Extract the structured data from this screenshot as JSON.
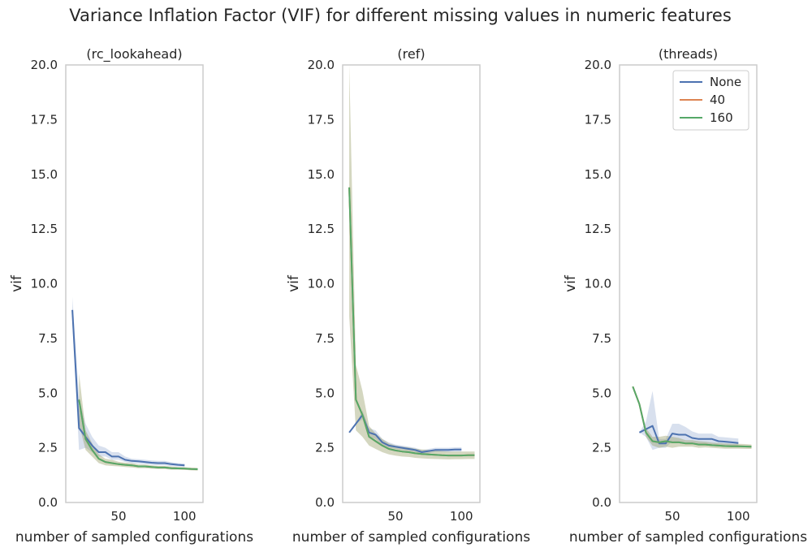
{
  "figure_title": "Variance Inflation Factor (VIF) for different missing values in numeric features",
  "colors": {
    "None": "#4c72b0",
    "40": "#dd8452",
    "160": "#55a868",
    "frame": "#cccccc",
    "text": "#262626"
  },
  "chart_data": [
    {
      "type": "line",
      "title": "(rc_lookahead)",
      "xlabel": "number of sampled configurations",
      "ylabel": "vif",
      "xlim": [
        10,
        114
      ],
      "ylim": [
        0,
        20
      ],
      "xticks": [
        50,
        100
      ],
      "yticks": [
        0.0,
        2.5,
        5.0,
        7.5,
        10.0,
        12.5,
        15.0,
        17.5,
        20.0
      ],
      "grid": false,
      "series": [
        {
          "name": "None",
          "x": [
            15,
            20,
            25,
            30,
            35,
            40,
            45,
            50,
            55,
            60,
            65,
            70,
            75,
            80,
            85,
            90,
            95,
            100
          ],
          "y": [
            8.8,
            3.4,
            3.0,
            2.6,
            2.3,
            2.3,
            2.1,
            2.1,
            1.95,
            1.9,
            1.88,
            1.85,
            1.82,
            1.8,
            1.8,
            1.75,
            1.72,
            1.7
          ],
          "lower": [
            8.2,
            2.4,
            2.5,
            2.3,
            2.1,
            2.1,
            1.95,
            1.95,
            1.85,
            1.8,
            1.78,
            1.75,
            1.72,
            1.7,
            1.7,
            1.66,
            1.64,
            1.62
          ],
          "upper": [
            9.4,
            4.8,
            3.6,
            3.0,
            2.6,
            2.5,
            2.3,
            2.3,
            2.1,
            2.0,
            1.98,
            1.95,
            1.92,
            1.9,
            1.9,
            1.84,
            1.8,
            1.78
          ]
        },
        {
          "name": "40",
          "x": [
            20,
            25,
            30,
            35,
            40,
            45,
            50,
            55,
            60,
            65,
            70,
            75,
            80,
            85,
            90,
            95,
            100,
            105,
            110
          ],
          "y": [
            4.7,
            2.9,
            2.4,
            2.0,
            1.85,
            1.8,
            1.75,
            1.72,
            1.7,
            1.65,
            1.65,
            1.62,
            1.6,
            1.6,
            1.57,
            1.56,
            1.55,
            1.53,
            1.52
          ],
          "lower": [
            3.6,
            2.4,
            2.1,
            1.8,
            1.7,
            1.67,
            1.65,
            1.62,
            1.6,
            1.57,
            1.57,
            1.55,
            1.53,
            1.53,
            1.5,
            1.5,
            1.49,
            1.47,
            1.46
          ],
          "upper": [
            5.9,
            3.3,
            2.7,
            2.2,
            2.0,
            1.95,
            1.86,
            1.82,
            1.8,
            1.74,
            1.73,
            1.7,
            1.67,
            1.67,
            1.64,
            1.62,
            1.61,
            1.59,
            1.58
          ]
        },
        {
          "name": "160",
          "x": [
            20,
            25,
            30,
            35,
            40,
            45,
            50,
            55,
            60,
            65,
            70,
            75,
            80,
            85,
            90,
            95,
            100,
            105,
            110
          ],
          "y": [
            4.7,
            2.9,
            2.4,
            2.0,
            1.85,
            1.8,
            1.75,
            1.72,
            1.7,
            1.65,
            1.65,
            1.62,
            1.6,
            1.6,
            1.57,
            1.56,
            1.55,
            1.53,
            1.52
          ],
          "lower": [
            3.6,
            2.4,
            2.1,
            1.8,
            1.7,
            1.67,
            1.65,
            1.62,
            1.6,
            1.57,
            1.57,
            1.55,
            1.53,
            1.53,
            1.5,
            1.5,
            1.49,
            1.47,
            1.46
          ],
          "upper": [
            5.9,
            3.3,
            2.7,
            2.2,
            2.0,
            1.95,
            1.86,
            1.82,
            1.8,
            1.74,
            1.73,
            1.7,
            1.67,
            1.67,
            1.64,
            1.62,
            1.61,
            1.59,
            1.58
          ]
        }
      ]
    },
    {
      "type": "line",
      "title": "(ref)",
      "xlabel": "number of sampled configurations",
      "ylabel": "vif",
      "xlim": [
        10,
        114
      ],
      "ylim": [
        0,
        20
      ],
      "xticks": [
        50,
        100
      ],
      "yticks": [
        0.0,
        2.5,
        5.0,
        7.5,
        10.0,
        12.5,
        15.0,
        17.5,
        20.0
      ],
      "grid": false,
      "series": [
        {
          "name": "None",
          "x": [
            15,
            20,
            25,
            30,
            35,
            40,
            45,
            50,
            55,
            60,
            65,
            70,
            75,
            80,
            85,
            90,
            95,
            100
          ],
          "y": [
            3.2,
            3.6,
            4.0,
            3.2,
            3.1,
            2.75,
            2.6,
            2.55,
            2.5,
            2.45,
            2.4,
            2.3,
            2.35,
            2.4,
            2.4,
            2.4,
            2.42,
            2.42
          ],
          "lower": [
            3.2,
            3.6,
            3.8,
            3.0,
            2.9,
            2.6,
            2.5,
            2.45,
            2.4,
            2.35,
            2.3,
            2.2,
            2.25,
            2.3,
            2.3,
            2.3,
            2.32,
            2.32
          ],
          "upper": [
            3.2,
            3.6,
            4.2,
            3.4,
            3.3,
            2.9,
            2.75,
            2.65,
            2.6,
            2.55,
            2.5,
            2.4,
            2.45,
            2.5,
            2.5,
            2.5,
            2.52,
            2.52
          ]
        },
        {
          "name": "40",
          "x": [
            15,
            20,
            25,
            30,
            35,
            40,
            45,
            50,
            55,
            60,
            65,
            70,
            75,
            80,
            85,
            90,
            95,
            100,
            105,
            110
          ],
          "y": [
            14.4,
            4.7,
            4.0,
            3.0,
            2.8,
            2.6,
            2.45,
            2.38,
            2.33,
            2.3,
            2.25,
            2.22,
            2.2,
            2.18,
            2.16,
            2.15,
            2.15,
            2.15,
            2.16,
            2.16
          ],
          "lower": [
            8.5,
            3.3,
            3.0,
            2.6,
            2.45,
            2.3,
            2.2,
            2.14,
            2.1,
            2.08,
            2.04,
            2.02,
            2.0,
            1.99,
            1.98,
            1.97,
            1.98,
            1.98,
            1.99,
            1.99
          ],
          "upper": [
            20.0,
            6.3,
            5.1,
            3.5,
            3.15,
            2.9,
            2.7,
            2.6,
            2.55,
            2.52,
            2.46,
            2.42,
            2.4,
            2.37,
            2.35,
            2.33,
            2.33,
            2.33,
            2.33,
            2.33
          ]
        },
        {
          "name": "160",
          "x": [
            15,
            20,
            25,
            30,
            35,
            40,
            45,
            50,
            55,
            60,
            65,
            70,
            75,
            80,
            85,
            90,
            95,
            100,
            105,
            110
          ],
          "y": [
            14.4,
            4.7,
            4.0,
            3.0,
            2.8,
            2.6,
            2.45,
            2.38,
            2.33,
            2.3,
            2.25,
            2.22,
            2.2,
            2.18,
            2.16,
            2.15,
            2.15,
            2.15,
            2.16,
            2.16
          ],
          "lower": [
            8.5,
            3.3,
            3.0,
            2.6,
            2.45,
            2.3,
            2.2,
            2.14,
            2.1,
            2.08,
            2.04,
            2.02,
            2.0,
            1.99,
            1.98,
            1.97,
            1.98,
            1.98,
            1.99,
            1.99
          ],
          "upper": [
            20.0,
            6.3,
            5.1,
            3.5,
            3.15,
            2.9,
            2.7,
            2.6,
            2.55,
            2.52,
            2.46,
            2.42,
            2.4,
            2.37,
            2.35,
            2.33,
            2.33,
            2.33,
            2.33,
            2.33
          ]
        }
      ]
    },
    {
      "type": "line",
      "title": "(threads)",
      "xlabel": "number of sampled configurations",
      "ylabel": "vif",
      "xlim": [
        10,
        114
      ],
      "ylim": [
        0,
        20
      ],
      "xticks": [
        50,
        100
      ],
      "yticks": [
        0.0,
        2.5,
        5.0,
        7.5,
        10.0,
        12.5,
        15.0,
        17.5,
        20.0
      ],
      "grid": false,
      "legend": {
        "position": "top-right",
        "entries": [
          "None",
          "40",
          "160"
        ]
      },
      "series": [
        {
          "name": "None",
          "x": [
            25,
            30,
            35,
            40,
            45,
            50,
            55,
            60,
            65,
            70,
            75,
            80,
            85,
            90,
            95,
            100
          ],
          "y": [
            3.2,
            3.35,
            3.5,
            2.7,
            2.7,
            3.15,
            3.1,
            3.1,
            2.95,
            2.9,
            2.9,
            2.9,
            2.8,
            2.78,
            2.75,
            2.72
          ],
          "lower": [
            3.2,
            3.0,
            2.4,
            2.5,
            2.5,
            2.8,
            2.75,
            2.75,
            2.7,
            2.65,
            2.65,
            2.65,
            2.6,
            2.58,
            2.55,
            2.52
          ],
          "upper": [
            3.2,
            3.7,
            5.1,
            2.9,
            2.9,
            3.6,
            3.6,
            3.45,
            3.25,
            3.15,
            3.15,
            3.15,
            3.0,
            2.98,
            2.95,
            2.92
          ]
        },
        {
          "name": "40",
          "x": [
            20,
            25,
            30,
            35,
            40,
            45,
            50,
            55,
            60,
            65,
            70,
            75,
            80,
            85,
            90,
            95,
            100,
            105,
            110
          ],
          "y": [
            5.3,
            4.5,
            3.2,
            2.8,
            2.75,
            2.8,
            2.75,
            2.75,
            2.7,
            2.7,
            2.65,
            2.65,
            2.62,
            2.6,
            2.58,
            2.57,
            2.57,
            2.56,
            2.55
          ],
          "lower": [
            5.3,
            4.5,
            3.0,
            2.6,
            2.5,
            2.55,
            2.5,
            2.55,
            2.55,
            2.55,
            2.5,
            2.52,
            2.5,
            2.48,
            2.46,
            2.46,
            2.46,
            2.45,
            2.45
          ],
          "upper": [
            5.3,
            4.5,
            3.4,
            3.0,
            3.0,
            3.05,
            3.0,
            2.95,
            2.85,
            2.85,
            2.8,
            2.78,
            2.74,
            2.72,
            2.7,
            2.68,
            2.68,
            2.67,
            2.65
          ]
        },
        {
          "name": "160",
          "x": [
            20,
            25,
            30,
            35,
            40,
            45,
            50,
            55,
            60,
            65,
            70,
            75,
            80,
            85,
            90,
            95,
            100,
            105,
            110
          ],
          "y": [
            5.3,
            4.5,
            3.2,
            2.8,
            2.75,
            2.8,
            2.75,
            2.75,
            2.7,
            2.7,
            2.65,
            2.65,
            2.62,
            2.6,
            2.58,
            2.57,
            2.57,
            2.56,
            2.55
          ],
          "lower": [
            5.3,
            4.5,
            3.0,
            2.6,
            2.5,
            2.55,
            2.5,
            2.55,
            2.55,
            2.55,
            2.5,
            2.52,
            2.5,
            2.48,
            2.46,
            2.46,
            2.46,
            2.45,
            2.45
          ],
          "upper": [
            5.3,
            4.5,
            3.4,
            3.0,
            3.0,
            3.05,
            3.0,
            2.95,
            2.85,
            2.85,
            2.8,
            2.78,
            2.74,
            2.72,
            2.7,
            2.68,
            2.68,
            2.67,
            2.65
          ]
        }
      ]
    }
  ]
}
